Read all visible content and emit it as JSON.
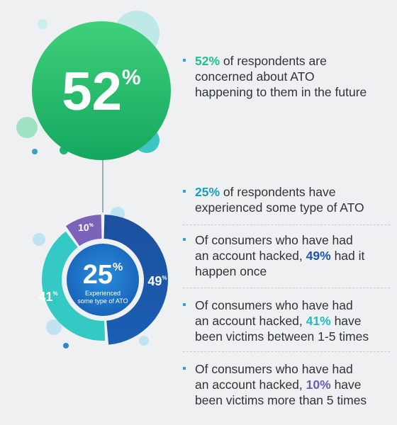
{
  "colors": {
    "green_top": "#3fd07b",
    "green_bottom": "#14a85f",
    "navy": "#1e4d9b",
    "cyan": "#35c9c3",
    "purple": "#7a63b8",
    "center_blue": "#1d73c9",
    "accent_bullet": "#2aa7c9"
  },
  "headline": {
    "number": "52",
    "percent_sign": "%"
  },
  "donut_center": {
    "number": "25",
    "percent_sign": "%",
    "line1": "Experienced",
    "line2": "some type of ATO"
  },
  "chart_data": {
    "type": "pie",
    "title": "",
    "categories": [
      "49%",
      "41%",
      "10%"
    ],
    "values": [
      49,
      41,
      10
    ],
    "labels": {
      "navy": {
        "number": "49",
        "sign": "%"
      },
      "cyan": {
        "number": "41",
        "sign": "%"
      },
      "purple": {
        "number": "10",
        "sign": "%"
      }
    }
  },
  "bullets": [
    {
      "highlight": "52%",
      "lines": [
        "of respondents are",
        "concerned about ATO",
        "happening to them in the future"
      ]
    },
    {
      "highlight": "25%",
      "lines": [
        "of respondents have",
        "experienced some type of ATO"
      ]
    },
    {
      "pre": "Of consumers who have had",
      "mid_pre": "an account hacked,",
      "highlight": "49%",
      "mid_post": "had it",
      "post": "happen once"
    },
    {
      "pre": "Of consumers who have had",
      "mid_pre": "an account hacked,",
      "highlight": "41%",
      "mid_post": "have",
      "post": "been victims between 1-5 times"
    },
    {
      "pre": "Of consumers who have had",
      "mid_pre": "an account hacked,",
      "highlight": "10%",
      "mid_post": "have",
      "post": "been victims more than 5 times"
    }
  ]
}
